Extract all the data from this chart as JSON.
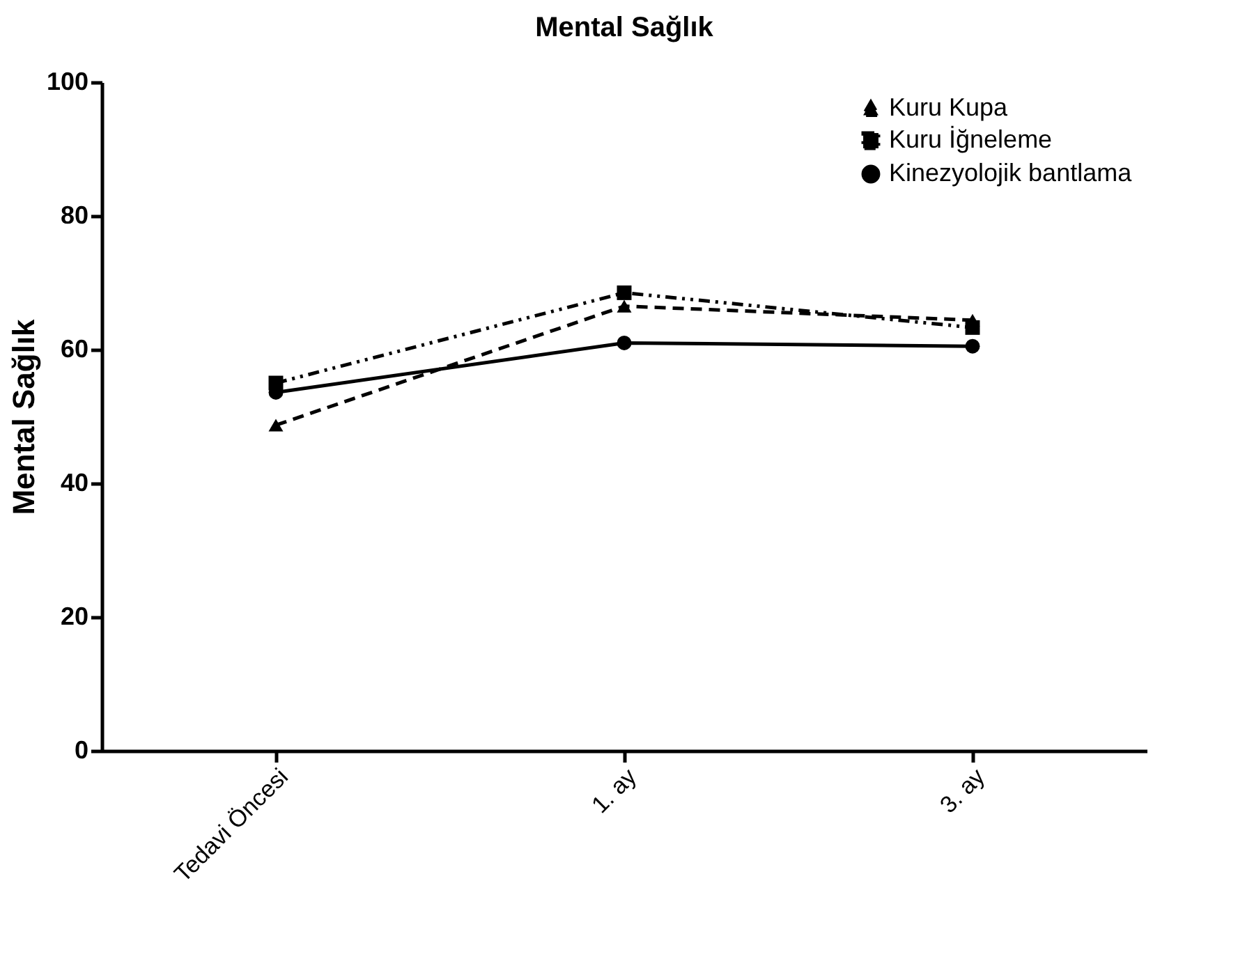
{
  "chart_data": {
    "type": "line",
    "title": "Mental Sağlık",
    "ylabel": "Mental Sağlık",
    "categories": [
      "Tedavi Öncesi",
      "1. ay",
      "3. ay"
    ],
    "series": [
      {
        "name": "Kuru Kupa",
        "color": "#000000",
        "marker": "triangle",
        "line_style": "dashed",
        "values": [
          48.7,
          66.5,
          64.4
        ]
      },
      {
        "name": "Kuru İğneleme",
        "color": "#000000",
        "marker": "square",
        "line_style": "dotted",
        "values": [
          55.0,
          68.5,
          63.3
        ]
      },
      {
        "name": "Kinezyolojik bantlama",
        "color": "#000000",
        "marker": "circle",
        "line_style": "solid",
        "values": [
          53.6,
          61.0,
          60.5
        ]
      }
    ],
    "ylim": [
      0,
      100
    ],
    "yticks": [
      0,
      20,
      40,
      60,
      80,
      100
    ],
    "grid": false,
    "legend": "top right"
  }
}
